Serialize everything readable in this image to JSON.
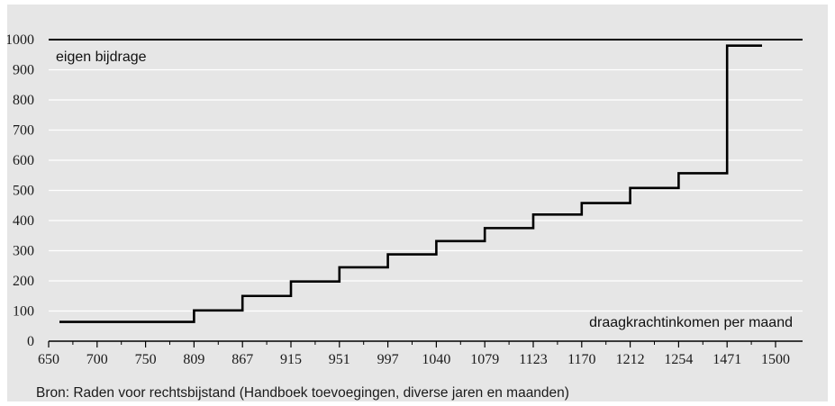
{
  "chart_data": {
    "type": "line",
    "step": true,
    "ylabel": "eigen bijdrage",
    "xlabel": "draagkrachtinkomen per maand",
    "source": "Bron: Raden voor rechtsbijstand (Handboek toevoegingen, diverse jaren en maanden)",
    "x_tick_labels": [
      "650",
      "700",
      "750",
      "809",
      "867",
      "915",
      "951",
      "997",
      "1040",
      "1079",
      "1123",
      "1170",
      "1212",
      "1254",
      "1471",
      "1500"
    ],
    "y_ticks": [
      0,
      100,
      200,
      300,
      400,
      500,
      600,
      700,
      800,
      900,
      1000
    ],
    "ylim": [
      0,
      1000
    ],
    "grid": true,
    "x_axis_note": "categorical, non-proportional income thresholds",
    "series": [
      {
        "steps": [
          {
            "from": "650",
            "to": "809",
            "value": 64
          },
          {
            "from": "809",
            "to": "867",
            "value": 102
          },
          {
            "from": "867",
            "to": "915",
            "value": 150
          },
          {
            "from": "915",
            "to": "951",
            "value": 198
          },
          {
            "from": "951",
            "to": "997",
            "value": 245
          },
          {
            "from": "997",
            "to": "1040",
            "value": 288
          },
          {
            "from": "1040",
            "to": "1079",
            "value": 332
          },
          {
            "from": "1079",
            "to": "1123",
            "value": 375
          },
          {
            "from": "1123",
            "to": "1170",
            "value": 420
          },
          {
            "from": "1170",
            "to": "1212",
            "value": 458
          },
          {
            "from": "1212",
            "to": "1254",
            "value": 508
          },
          {
            "from": "1254",
            "to": "1471",
            "value": 557
          },
          {
            "from": "1471",
            "to": "1500",
            "value": 980
          }
        ]
      }
    ],
    "colors": {
      "background": "#e6e6e6",
      "grid": "#ffffff",
      "line": "#000000",
      "text": "#1a1a1a"
    }
  }
}
